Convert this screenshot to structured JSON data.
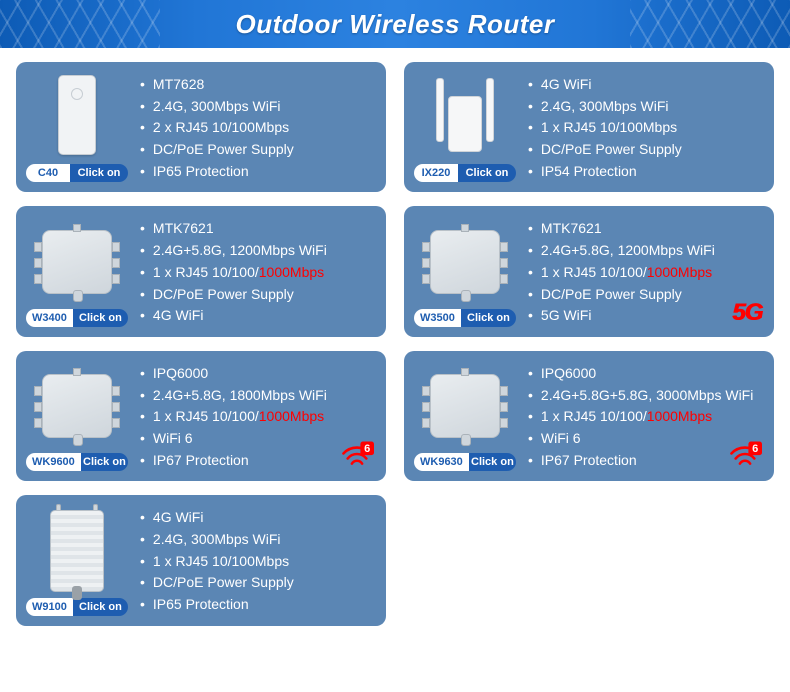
{
  "colors": {
    "header_gradient": [
      "#0d5bb5",
      "#2c82e0",
      "#0d5bb5"
    ],
    "card_bg": "#5b86b4",
    "pill_bg": "#1e5db0",
    "highlight": "#ff0000",
    "text": "#ffffff"
  },
  "header": {
    "title": "Outdoor Wireless Router"
  },
  "click_label": "Click on",
  "products": [
    {
      "model": "C40",
      "device": "cpe",
      "specs": [
        [
          {
            "t": "MT7628"
          }
        ],
        [
          {
            "t": "2.4G, 300Mbps WiFi"
          }
        ],
        [
          {
            "t": "2 x RJ45 10/100Mbps"
          }
        ],
        [
          {
            "t": "DC/PoE Power Supply"
          }
        ],
        [
          {
            "t": "IP65 Protection"
          }
        ]
      ]
    },
    {
      "model": "IX220",
      "device": "ext",
      "specs": [
        [
          {
            "t": "4G WiFi"
          }
        ],
        [
          {
            "t": "2.4G, 300Mbps WiFi"
          }
        ],
        [
          {
            "t": "1 x RJ45 10/100Mbps"
          }
        ],
        [
          {
            "t": "DC/PoE Power Supply"
          }
        ],
        [
          {
            "t": "IP54 Protection"
          }
        ]
      ]
    },
    {
      "model": "W3400",
      "device": "ap",
      "specs": [
        [
          {
            "t": "MTK7621"
          }
        ],
        [
          {
            "t": "2.4G+5.8G, 1200Mbps WiFi"
          }
        ],
        [
          {
            "t": "1 x RJ45 10/100/"
          },
          {
            "t": "1000Mbps",
            "hl": true
          }
        ],
        [
          {
            "t": "DC/PoE Power Supply"
          }
        ],
        [
          {
            "t": "4G WiFi"
          }
        ]
      ]
    },
    {
      "model": "W3500",
      "device": "ap",
      "badge": "5g",
      "specs": [
        [
          {
            "t": "MTK7621"
          }
        ],
        [
          {
            "t": "2.4G+5.8G, 1200Mbps WiFi"
          }
        ],
        [
          {
            "t": "1 x RJ45 10/100/"
          },
          {
            "t": "1000Mbps",
            "hl": true
          }
        ],
        [
          {
            "t": "DC/PoE Power Supply"
          }
        ],
        [
          {
            "t": "5G WiFi"
          }
        ]
      ]
    },
    {
      "model": "WK9600",
      "device": "ap",
      "badge": "wifi6",
      "specs": [
        [
          {
            "t": "IPQ6000"
          }
        ],
        [
          {
            "t": "2.4G+5.8G, 1800Mbps WiFi"
          }
        ],
        [
          {
            "t": "1 x RJ45 10/100/"
          },
          {
            "t": "1000Mbps",
            "hl": true
          }
        ],
        [
          {
            "t": "WiFi 6"
          }
        ],
        [
          {
            "t": "IP67 Protection"
          }
        ]
      ]
    },
    {
      "model": "WK9630",
      "device": "ap",
      "badge": "wifi6",
      "specs": [
        [
          {
            "t": "IPQ6000"
          }
        ],
        [
          {
            "t": "2.4G+5.8G+5.8G, 3000Mbps WiFi"
          }
        ],
        [
          {
            "t": "1 x RJ45 10/100/"
          },
          {
            "t": "1000Mbps",
            "hl": true
          }
        ],
        [
          {
            "t": "WiFi 6"
          }
        ],
        [
          {
            "t": "IP67 Protection"
          }
        ]
      ]
    },
    {
      "model": "W9100",
      "device": "box",
      "specs": [
        [
          {
            "t": "4G WiFi"
          }
        ],
        [
          {
            "t": "2.4G, 300Mbps WiFi"
          }
        ],
        [
          {
            "t": "1 x RJ45 10/100Mbps"
          }
        ],
        [
          {
            "t": "DC/PoE Power Supply"
          }
        ],
        [
          {
            "t": "IP65 Protection"
          }
        ]
      ]
    }
  ]
}
